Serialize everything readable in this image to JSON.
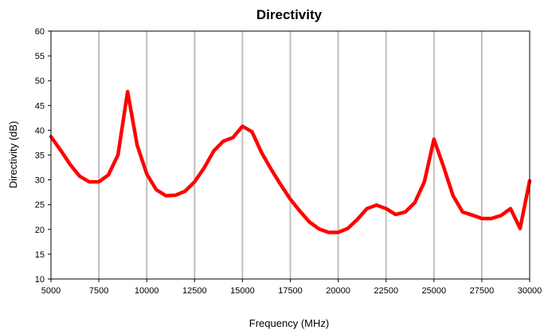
{
  "chart_data": {
    "type": "line",
    "title": "Directivity",
    "xlabel": "Frequency (MHz)",
    "ylabel": "Directivity (dB)",
    "xlim": [
      5000,
      30000
    ],
    "ylim": [
      10,
      60
    ],
    "x_ticks": [
      "5000",
      "7500",
      "10000",
      "12500",
      "15000",
      "17500",
      "20000",
      "22500",
      "25000",
      "27500",
      "30000"
    ],
    "y_ticks": [
      "10",
      "15",
      "20",
      "25",
      "30",
      "35",
      "40",
      "45",
      "50",
      "55",
      "60"
    ],
    "grid": "vertical",
    "legend": "none",
    "series": [
      {
        "color": "#ff0000",
        "x": [
          5000,
          5500,
          6000,
          6500,
          7000,
          7500,
          8000,
          8500,
          9000,
          9500,
          10000,
          10500,
          11000,
          11500,
          12000,
          12500,
          13000,
          13500,
          14000,
          14500,
          15000,
          15500,
          16000,
          16500,
          17000,
          17500,
          18000,
          18500,
          19000,
          19500,
          20000,
          20500,
          21000,
          21500,
          22000,
          22500,
          23000,
          23500,
          24000,
          24500,
          25000,
          25500,
          26000,
          26500,
          27000,
          27500,
          28000,
          28500,
          29000,
          29500,
          30000
        ],
        "y": [
          38.7,
          36.0,
          33.1,
          30.7,
          29.6,
          29.6,
          31.0,
          35.0,
          47.8,
          37.0,
          31.2,
          28.0,
          26.8,
          26.9,
          27.7,
          29.6,
          32.4,
          35.8,
          37.8,
          38.5,
          40.8,
          39.7,
          35.5,
          32.1,
          29.0,
          26.1,
          23.7,
          21.5,
          20.1,
          19.4,
          19.4,
          20.2,
          22.0,
          24.2,
          24.9,
          24.2,
          23.0,
          23.5,
          25.4,
          29.6,
          38.2,
          32.7,
          26.8,
          23.5,
          22.9,
          22.2,
          22.2,
          22.8,
          24.2,
          20.2,
          29.8
        ]
      }
    ]
  }
}
